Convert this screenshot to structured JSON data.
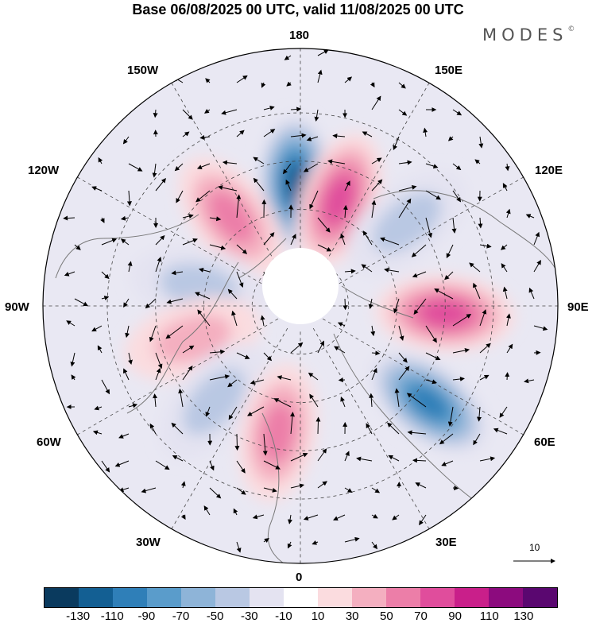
{
  "title": "Base 06/08/2025 00 UTC, valid 11/08/2025 00 UTC",
  "logo": "MODES",
  "logo_mark": "©",
  "longitude_labels": {
    "top": "180",
    "bottom": "0",
    "left": "90W",
    "right": "90E",
    "upper_left_1": "150W",
    "upper_left_2": "120W",
    "upper_right_1": "150E",
    "upper_right_2": "120E",
    "lower_left_1": "60W",
    "lower_left_2": "30W",
    "lower_right_1": "60E",
    "lower_right_2": "30E"
  },
  "vector_scale_label": "10",
  "colorbar": {
    "colors": [
      "#0a3a5e",
      "#135f93",
      "#2f7fb8",
      "#5a9ccb",
      "#8eb4d8",
      "#b9c8e3",
      "#e4e3f1",
      "#ffffff",
      "#fbdcdf",
      "#f4afc0",
      "#ec7ea8",
      "#e04d9c",
      "#c91f8a",
      "#8c0b7e",
      "#5a0770"
    ],
    "ticks": [
      "-130",
      "-110",
      "-90",
      "-70",
      "-50",
      "-30",
      "-10",
      "10",
      "30",
      "50",
      "70",
      "90",
      "110",
      "130"
    ]
  },
  "anomalies": [
    {
      "lon": -178,
      "lat": 52,
      "value": -120
    },
    {
      "lon": 160,
      "lat": 55,
      "value": 95
    },
    {
      "lon": -142,
      "lat": 55,
      "value": 75
    },
    {
      "lon": -101,
      "lat": 58,
      "value": -55
    },
    {
      "lon": -73,
      "lat": 55,
      "value": 55
    },
    {
      "lon": -42,
      "lat": 50,
      "value": -50
    },
    {
      "lon": -10,
      "lat": 50,
      "value": 60
    },
    {
      "lon": 53,
      "lat": 40,
      "value": -100
    },
    {
      "lon": 87,
      "lat": 45,
      "value": 90
    },
    {
      "lon": 128,
      "lat": 48,
      "value": -40
    }
  ]
}
